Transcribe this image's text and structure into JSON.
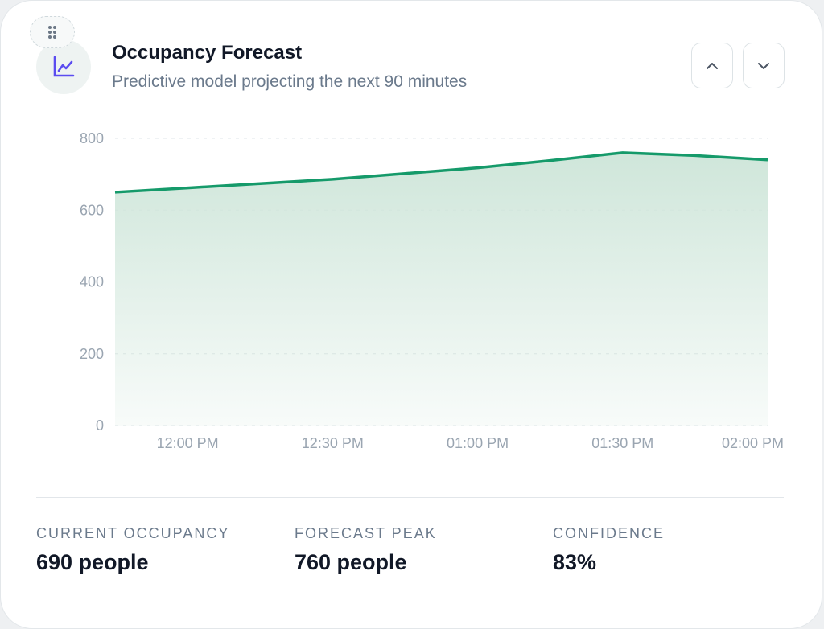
{
  "header": {
    "title": "Occupancy Forecast",
    "subtitle": "Predictive model projecting the next 90 minutes"
  },
  "icons": {
    "drag": "drag-handle-icon",
    "chart": "line-chart-icon",
    "up": "chevron-up-icon",
    "down": "chevron-down-icon"
  },
  "colors": {
    "line": "#159a6a",
    "fill": "#cfe6da",
    "accent_icon": "#5b4cf0"
  },
  "chart_data": {
    "type": "area",
    "x": [
      "11:45 AM",
      "12:00 PM",
      "12:15 PM",
      "12:30 PM",
      "12:45 PM",
      "01:00 PM",
      "01:15 PM",
      "01:30 PM",
      "01:45 PM",
      "02:00 PM"
    ],
    "values": [
      650,
      662,
      674,
      686,
      702,
      718,
      738,
      760,
      752,
      740
    ],
    "xticks": [
      "12:00 PM",
      "12:30 PM",
      "01:00 PM",
      "01:30 PM",
      "02:00 PM"
    ],
    "yticks": [
      "0",
      "200",
      "400",
      "600",
      "800"
    ],
    "ylim": [
      0,
      800
    ],
    "grid": true
  },
  "stats": [
    {
      "label": "CURRENT OCCUPANCY",
      "value": "690 people"
    },
    {
      "label": "FORECAST PEAK",
      "value": "760 people"
    },
    {
      "label": "CONFIDENCE",
      "value": "83%"
    }
  ]
}
